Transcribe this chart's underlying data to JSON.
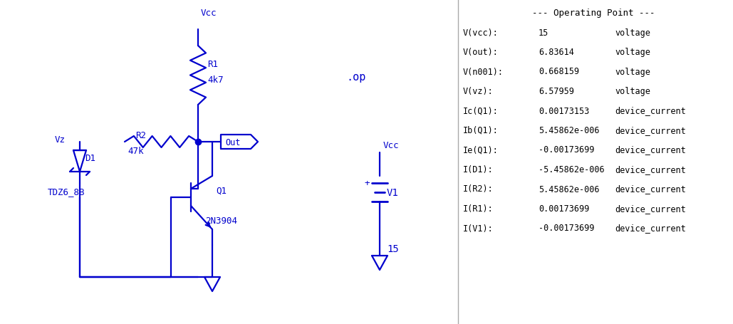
{
  "bg_color": "#ffffff",
  "circuit_color": "#0000cd",
  "text_color_circuit": "#0000cd",
  "text_color_op": "#000000",
  "op_title": "--- Operating Point ---",
  "op_rows": [
    [
      "V(vcc):",
      "15",
      "voltage"
    ],
    [
      "V(out):",
      "6.83614",
      "voltage"
    ],
    [
      "V(n001):",
      "0.668159",
      "voltage"
    ],
    [
      "V(vz):",
      "6.57959",
      "voltage"
    ],
    [
      "Ic(Q1):",
      "0.00173153",
      "device_current"
    ],
    [
      "Ib(Q1):",
      "5.45862e-006",
      "device_current"
    ],
    [
      "Ie(Q1):",
      "-0.00173699",
      "device_current"
    ],
    [
      "I(D1):",
      "-5.45862e-006",
      "device_current"
    ],
    [
      "I(R2):",
      "5.45862e-006",
      "device_current"
    ],
    [
      "I(R1):",
      "0.00173699",
      "device_current"
    ],
    [
      "I(V1):",
      "-0.00173699",
      "device_current"
    ]
  ],
  "op_label": ".op",
  "vcc_label": "Vcc",
  "r1_label": "R1",
  "r1_val": "4k7",
  "r2_label": "R2",
  "r2_val": "47k",
  "vz_label": "Vz",
  "d1_label": "D1",
  "d1_name": "TDZ6_8B",
  "q1_label": "Q1",
  "q1_name": "2N3904",
  "out_label": "Out",
  "v1_vcc_label": "Vcc",
  "v1_label": "V1",
  "v1_val": "15",
  "v1_plus": "+"
}
